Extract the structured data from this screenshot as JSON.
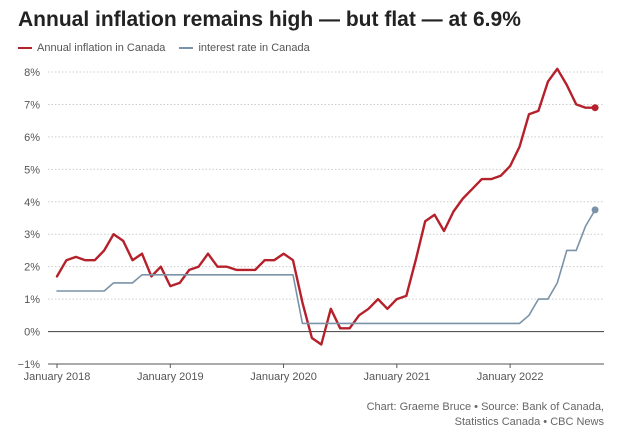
{
  "title": "Annual inflation remains high — but flat — at 6.9%",
  "source_line1": "Chart: Graeme Bruce • Source: Bank of Canada,",
  "source_line2": "Statistics Canada • CBC News",
  "colors": {
    "inflation": "#b5202b",
    "interest": "#7a93a8",
    "grid": "#cccccc",
    "axis": "#555555"
  },
  "chart_data": {
    "type": "line",
    "x_start": "January 2018",
    "x_frequency": "monthly",
    "x_tick_labels": [
      "January 2018",
      "January 2019",
      "January 2020",
      "January 2021",
      "January 2022"
    ],
    "y_tick_labels": [
      "−1%",
      "0%",
      "1%",
      "2%",
      "3%",
      "4%",
      "5%",
      "6%",
      "7%",
      "8%"
    ],
    "ylim": [
      -1,
      8
    ],
    "grid": true,
    "legend": "top-left",
    "series": [
      {
        "name": "Annual inflation in Canada",
        "key": "inflation",
        "values": [
          1.7,
          2.2,
          2.3,
          2.2,
          2.2,
          2.5,
          3.0,
          2.8,
          2.2,
          2.4,
          1.7,
          2.0,
          1.4,
          1.5,
          1.9,
          2.0,
          2.4,
          2.0,
          2.0,
          1.9,
          1.9,
          1.9,
          2.2,
          2.2,
          2.4,
          2.2,
          0.9,
          -0.2,
          -0.4,
          0.7,
          0.1,
          0.1,
          0.5,
          0.7,
          1.0,
          0.7,
          1.0,
          1.1,
          2.2,
          3.4,
          3.6,
          3.1,
          3.7,
          4.1,
          4.4,
          4.7,
          4.7,
          4.8,
          5.1,
          5.7,
          6.7,
          6.8,
          7.7,
          8.1,
          7.6,
          7.0,
          6.9,
          6.9
        ]
      },
      {
        "name": "interest rate in Canada",
        "key": "interest",
        "values": [
          1.25,
          1.25,
          1.25,
          1.25,
          1.25,
          1.25,
          1.5,
          1.5,
          1.5,
          1.75,
          1.75,
          1.75,
          1.75,
          1.75,
          1.75,
          1.75,
          1.75,
          1.75,
          1.75,
          1.75,
          1.75,
          1.75,
          1.75,
          1.75,
          1.75,
          1.75,
          0.25,
          0.25,
          0.25,
          0.25,
          0.25,
          0.25,
          0.25,
          0.25,
          0.25,
          0.25,
          0.25,
          0.25,
          0.25,
          0.25,
          0.25,
          0.25,
          0.25,
          0.25,
          0.25,
          0.25,
          0.25,
          0.25,
          0.25,
          0.25,
          0.5,
          1.0,
          1.0,
          1.5,
          2.5,
          2.5,
          3.25,
          3.75
        ]
      }
    ]
  }
}
